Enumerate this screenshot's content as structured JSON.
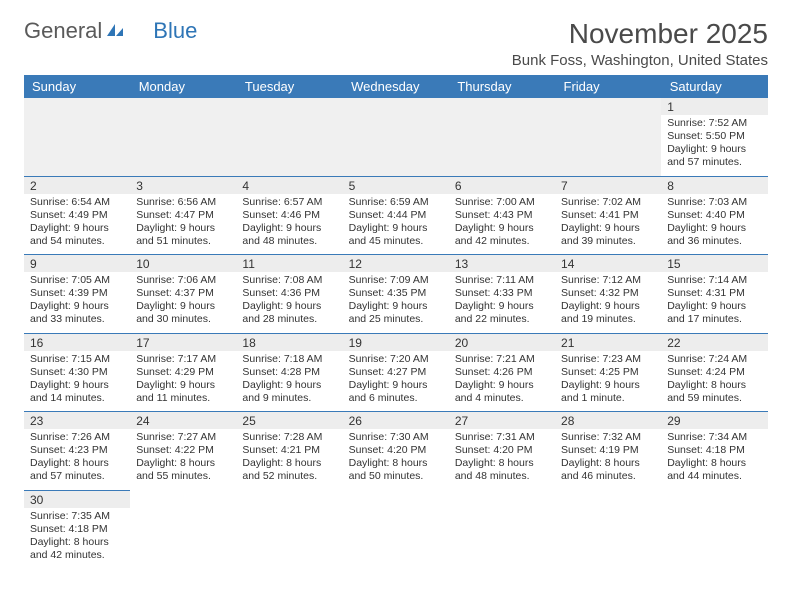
{
  "logo": {
    "text1": "General",
    "text2": "Blue"
  },
  "title": "November 2025",
  "location": "Bunk Foss, Washington, United States",
  "colors": {
    "header_bg": "#3a7ab8",
    "header_text": "#ffffff",
    "border": "#3a7ab8",
    "daynum_bg": "#ededed",
    "text": "#333333",
    "logo_gray": "#5a5a5a",
    "logo_blue": "#2e75b6"
  },
  "day_headers": [
    "Sunday",
    "Monday",
    "Tuesday",
    "Wednesday",
    "Thursday",
    "Friday",
    "Saturday"
  ],
  "weeks": [
    [
      null,
      null,
      null,
      null,
      null,
      null,
      {
        "n": "1",
        "sr": "Sunrise: 7:52 AM",
        "ss": "Sunset: 5:50 PM",
        "dl1": "Daylight: 9 hours",
        "dl2": "and 57 minutes."
      }
    ],
    [
      {
        "n": "2",
        "sr": "Sunrise: 6:54 AM",
        "ss": "Sunset: 4:49 PM",
        "dl1": "Daylight: 9 hours",
        "dl2": "and 54 minutes."
      },
      {
        "n": "3",
        "sr": "Sunrise: 6:56 AM",
        "ss": "Sunset: 4:47 PM",
        "dl1": "Daylight: 9 hours",
        "dl2": "and 51 minutes."
      },
      {
        "n": "4",
        "sr": "Sunrise: 6:57 AM",
        "ss": "Sunset: 4:46 PM",
        "dl1": "Daylight: 9 hours",
        "dl2": "and 48 minutes."
      },
      {
        "n": "5",
        "sr": "Sunrise: 6:59 AM",
        "ss": "Sunset: 4:44 PM",
        "dl1": "Daylight: 9 hours",
        "dl2": "and 45 minutes."
      },
      {
        "n": "6",
        "sr": "Sunrise: 7:00 AM",
        "ss": "Sunset: 4:43 PM",
        "dl1": "Daylight: 9 hours",
        "dl2": "and 42 minutes."
      },
      {
        "n": "7",
        "sr": "Sunrise: 7:02 AM",
        "ss": "Sunset: 4:41 PM",
        "dl1": "Daylight: 9 hours",
        "dl2": "and 39 minutes."
      },
      {
        "n": "8",
        "sr": "Sunrise: 7:03 AM",
        "ss": "Sunset: 4:40 PM",
        "dl1": "Daylight: 9 hours",
        "dl2": "and 36 minutes."
      }
    ],
    [
      {
        "n": "9",
        "sr": "Sunrise: 7:05 AM",
        "ss": "Sunset: 4:39 PM",
        "dl1": "Daylight: 9 hours",
        "dl2": "and 33 minutes."
      },
      {
        "n": "10",
        "sr": "Sunrise: 7:06 AM",
        "ss": "Sunset: 4:37 PM",
        "dl1": "Daylight: 9 hours",
        "dl2": "and 30 minutes."
      },
      {
        "n": "11",
        "sr": "Sunrise: 7:08 AM",
        "ss": "Sunset: 4:36 PM",
        "dl1": "Daylight: 9 hours",
        "dl2": "and 28 minutes."
      },
      {
        "n": "12",
        "sr": "Sunrise: 7:09 AM",
        "ss": "Sunset: 4:35 PM",
        "dl1": "Daylight: 9 hours",
        "dl2": "and 25 minutes."
      },
      {
        "n": "13",
        "sr": "Sunrise: 7:11 AM",
        "ss": "Sunset: 4:33 PM",
        "dl1": "Daylight: 9 hours",
        "dl2": "and 22 minutes."
      },
      {
        "n": "14",
        "sr": "Sunrise: 7:12 AM",
        "ss": "Sunset: 4:32 PM",
        "dl1": "Daylight: 9 hours",
        "dl2": "and 19 minutes."
      },
      {
        "n": "15",
        "sr": "Sunrise: 7:14 AM",
        "ss": "Sunset: 4:31 PM",
        "dl1": "Daylight: 9 hours",
        "dl2": "and 17 minutes."
      }
    ],
    [
      {
        "n": "16",
        "sr": "Sunrise: 7:15 AM",
        "ss": "Sunset: 4:30 PM",
        "dl1": "Daylight: 9 hours",
        "dl2": "and 14 minutes."
      },
      {
        "n": "17",
        "sr": "Sunrise: 7:17 AM",
        "ss": "Sunset: 4:29 PM",
        "dl1": "Daylight: 9 hours",
        "dl2": "and 11 minutes."
      },
      {
        "n": "18",
        "sr": "Sunrise: 7:18 AM",
        "ss": "Sunset: 4:28 PM",
        "dl1": "Daylight: 9 hours",
        "dl2": "and 9 minutes."
      },
      {
        "n": "19",
        "sr": "Sunrise: 7:20 AM",
        "ss": "Sunset: 4:27 PM",
        "dl1": "Daylight: 9 hours",
        "dl2": "and 6 minutes."
      },
      {
        "n": "20",
        "sr": "Sunrise: 7:21 AM",
        "ss": "Sunset: 4:26 PM",
        "dl1": "Daylight: 9 hours",
        "dl2": "and 4 minutes."
      },
      {
        "n": "21",
        "sr": "Sunrise: 7:23 AM",
        "ss": "Sunset: 4:25 PM",
        "dl1": "Daylight: 9 hours",
        "dl2": "and 1 minute."
      },
      {
        "n": "22",
        "sr": "Sunrise: 7:24 AM",
        "ss": "Sunset: 4:24 PM",
        "dl1": "Daylight: 8 hours",
        "dl2": "and 59 minutes."
      }
    ],
    [
      {
        "n": "23",
        "sr": "Sunrise: 7:26 AM",
        "ss": "Sunset: 4:23 PM",
        "dl1": "Daylight: 8 hours",
        "dl2": "and 57 minutes."
      },
      {
        "n": "24",
        "sr": "Sunrise: 7:27 AM",
        "ss": "Sunset: 4:22 PM",
        "dl1": "Daylight: 8 hours",
        "dl2": "and 55 minutes."
      },
      {
        "n": "25",
        "sr": "Sunrise: 7:28 AM",
        "ss": "Sunset: 4:21 PM",
        "dl1": "Daylight: 8 hours",
        "dl2": "and 52 minutes."
      },
      {
        "n": "26",
        "sr": "Sunrise: 7:30 AM",
        "ss": "Sunset: 4:20 PM",
        "dl1": "Daylight: 8 hours",
        "dl2": "and 50 minutes."
      },
      {
        "n": "27",
        "sr": "Sunrise: 7:31 AM",
        "ss": "Sunset: 4:20 PM",
        "dl1": "Daylight: 8 hours",
        "dl2": "and 48 minutes."
      },
      {
        "n": "28",
        "sr": "Sunrise: 7:32 AM",
        "ss": "Sunset: 4:19 PM",
        "dl1": "Daylight: 8 hours",
        "dl2": "and 46 minutes."
      },
      {
        "n": "29",
        "sr": "Sunrise: 7:34 AM",
        "ss": "Sunset: 4:18 PM",
        "dl1": "Daylight: 8 hours",
        "dl2": "and 44 minutes."
      }
    ],
    [
      {
        "n": "30",
        "sr": "Sunrise: 7:35 AM",
        "ss": "Sunset: 4:18 PM",
        "dl1": "Daylight: 8 hours",
        "dl2": "and 42 minutes."
      },
      null,
      null,
      null,
      null,
      null,
      null
    ]
  ]
}
